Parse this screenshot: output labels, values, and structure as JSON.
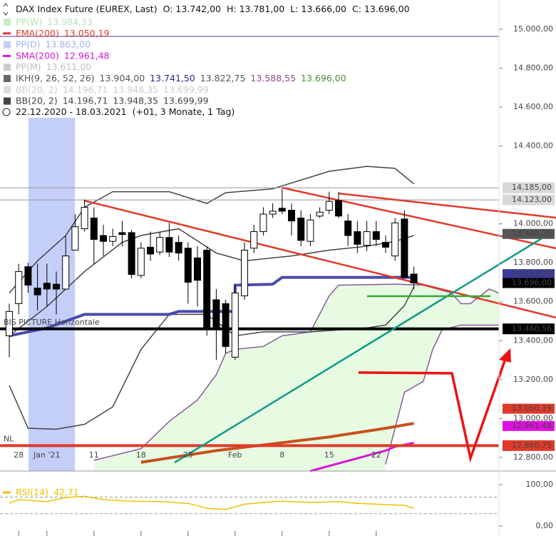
{
  "header": {
    "symbol": "DAX Index Future (EUREX, Last)",
    "ohlc": [
      "O: 13.742,00",
      "H: 13.781,00",
      "L: 13.666,00",
      "C: 13.696,00"
    ],
    "range": "22.12.2020 - 18.03.2021",
    "range_note": "(+01, 3 Monate, 1 Tag)"
  },
  "chart_data": [
    {
      "type": "candlestick",
      "legend": [
        {
          "name": "PP(W)",
          "values": [
            "13.984,33"
          ],
          "colors": [
            "#b5e3b5"
          ],
          "marker": "#c8eec8"
        },
        {
          "name": "EMA(200)",
          "values": [
            "13.050,19"
          ],
          "colors": [
            "#e03a2a"
          ],
          "marker": "#e03a2a"
        },
        {
          "name": "PP(D)",
          "values": [
            "13.863,00"
          ],
          "colors": [
            "#9fb2ee"
          ],
          "marker": "#c4d0f6"
        },
        {
          "name": "SMA(200)",
          "values": [
            "12.961,48"
          ],
          "colors": [
            "#d516d5"
          ],
          "marker": "#d516d5"
        },
        {
          "name": "PP(M)",
          "values": [
            "13.611,00"
          ],
          "colors": [
            "#c0c0c0"
          ],
          "marker": "#cccccc"
        },
        {
          "name": "IKH(9, 26, 52, 26)",
          "values": [
            "13.904,00",
            "13.741,50",
            "13.822,75",
            "13.588,55",
            "13.696,00"
          ],
          "colors": [
            "#555555",
            "#2a2a8a",
            "#555555",
            "#8a4a8a",
            "#4a8a3a"
          ],
          "marker": "#666666"
        },
        {
          "name": "BB(20, 2)",
          "values": [
            "14.196,71",
            "13.948,35",
            "13.699,99"
          ],
          "colors": [
            "#cccccc",
            "#cccccc",
            "#cccccc"
          ],
          "marker": "#dddddd"
        },
        {
          "name": "BB(20, 2)",
          "values": [
            "14.196,71",
            "13.948,35",
            "13.699,99"
          ],
          "colors": [
            "#444444",
            "#444444",
            "#444444"
          ],
          "marker": "#444444"
        }
      ],
      "categories": [
        null,
        "28",
        null,
        null,
        "Jan '21",
        null,
        null,
        null,
        null,
        "11",
        null,
        null,
        null,
        null,
        "18",
        null,
        null,
        null,
        null,
        "25",
        null,
        null,
        null,
        null,
        "Feb",
        null,
        null,
        null,
        null,
        "8",
        null,
        null,
        null,
        null,
        "15",
        null,
        null,
        null,
        null,
        "22",
        null,
        null,
        null,
        null
      ],
      "open": [
        13425,
        13590,
        13780,
        13670,
        13695,
        13690,
        13665,
        13865,
        13975,
        14030,
        13940,
        13910,
        13955,
        13955,
        13735,
        13880,
        13855,
        13930,
        13905,
        13875,
        13825,
        13865,
        13610,
        13590,
        13315,
        13630,
        13875,
        13960,
        14050,
        14080,
        14070,
        14030,
        13910,
        14040,
        14070,
        14120,
        14015,
        13960,
        13890,
        13960,
        13905,
        13835,
        14025,
        13742
      ],
      "high": [
        13590,
        13795,
        13800,
        13795,
        13795,
        13755,
        13940,
        14050,
        14125,
        14085,
        13995,
        13975,
        14015,
        13970,
        13905,
        13960,
        13960,
        14005,
        13940,
        13905,
        13885,
        13885,
        13665,
        13610,
        13685,
        13905,
        13995,
        14085,
        14105,
        14180,
        14105,
        14070,
        14050,
        14085,
        14165,
        14165,
        14050,
        14015,
        14015,
        14015,
        13940,
        14030,
        14070,
        13781
      ],
      "low": [
        13315,
        13535,
        13645,
        13555,
        13575,
        13535,
        13665,
        13865,
        13960,
        13795,
        13835,
        13885,
        13885,
        13720,
        13720,
        13810,
        13840,
        13830,
        13810,
        13590,
        13575,
        13425,
        13300,
        13335,
        13300,
        13610,
        13850,
        13940,
        14030,
        14050,
        13940,
        13885,
        13885,
        14030,
        14050,
        14030,
        13885,
        13850,
        13860,
        13885,
        13850,
        13810,
        13720,
        13666
      ],
      "close": [
        13550,
        13755,
        13685,
        13635,
        13665,
        13665,
        13835,
        13985,
        14085,
        13920,
        13910,
        13935,
        13945,
        13740,
        13875,
        13845,
        13930,
        13855,
        13850,
        13700,
        13710,
        13465,
        13465,
        13370,
        13645,
        13865,
        13960,
        14050,
        14065,
        14065,
        14015,
        13915,
        14020,
        14060,
        14115,
        14040,
        13940,
        13895,
        13960,
        13920,
        13880,
        14005,
        13725,
        13696
      ],
      "up_color": "#ffffff",
      "down_color": "#000000",
      "ylim": [
        12730,
        15150
      ],
      "yticks": [
        {
          "value": 12800,
          "label": "12.800,00"
        },
        {
          "value": 13000,
          "label": "13.000,00"
        },
        {
          "value": 13200,
          "label": "13.200,00"
        },
        {
          "value": 13400,
          "label": "13.400,00"
        },
        {
          "value": 13600,
          "label": "13.600,00"
        },
        {
          "value": 13800,
          "label": "13.800,00"
        },
        {
          "value": 14000,
          "label": "14.000,00"
        },
        {
          "value": 14400,
          "label": "14.400,00"
        },
        {
          "value": 14600,
          "label": "14.600,00"
        },
        {
          "value": 14800,
          "label": "14.800,00"
        },
        {
          "value": 15000,
          "label": "15.000,00"
        }
      ],
      "overlays": [
        {
          "color": "#8a5a9a",
          "width": 1.5,
          "fill": "#e6fbe2",
          "x": [
            9,
            14,
            17,
            20,
            22,
            23,
            24,
            27,
            29,
            32,
            34,
            35,
            41,
            44,
            47,
            48,
            49,
            51,
            52
          ],
          "values": [
            12785,
            12845,
            12985,
            13095,
            13225,
            13335,
            13355,
            13370,
            13425,
            13445,
            13630,
            13685,
            13690,
            13685,
            13645,
            13590,
            13590,
            13665,
            13645
          ]
        },
        {
          "color": "#8a5a9a",
          "width": 1.5,
          "x": [
            40,
            41,
            42,
            44,
            45,
            46,
            48,
            52
          ],
          "values": [
            12765,
            12950,
            13135,
            13190,
            13355,
            13455,
            13480,
            13480
          ]
        },
        {
          "color": "#444444",
          "width": 1.5,
          "x": [
            0,
            3,
            6,
            8,
            11,
            17,
            21,
            23,
            28,
            34,
            38,
            41,
            43
          ],
          "values": [
            13645,
            13810,
            13940,
            14085,
            14165,
            14165,
            14105,
            14160,
            14180,
            14270,
            14295,
            14285,
            14205
          ]
        },
        {
          "color": "#444444",
          "width": 1.5,
          "x": [
            0,
            4,
            8,
            12,
            14,
            18,
            22,
            25,
            30,
            34,
            38,
            41,
            43
          ],
          "values": [
            13425,
            13575,
            13755,
            13905,
            13940,
            13975,
            13850,
            13810,
            13835,
            13865,
            13885,
            13910,
            13940
          ]
        },
        {
          "color": "#444444",
          "width": 1.5,
          "x": [
            0,
            2,
            5,
            8,
            11,
            14,
            17,
            21,
            24,
            27,
            32,
            38,
            40,
            42,
            43
          ],
          "values": [
            13170,
            12950,
            12945,
            12970,
            13060,
            13355,
            13535,
            13535,
            13425,
            13445,
            13445,
            13465,
            13480,
            13580,
            13675
          ]
        },
        {
          "color": "#4b4baa",
          "width": 4,
          "x": [
            0,
            4,
            8,
            17,
            18,
            24,
            24,
            28,
            29,
            43
          ],
          "values": [
            13425,
            13465,
            13535,
            13535,
            13550,
            13550,
            13685,
            13690,
            13725,
            13725
          ]
        },
        {
          "color": "#c8501e",
          "width": 4,
          "x": [
            14,
            22,
            28,
            34,
            40,
            43
          ],
          "values": [
            12775,
            12835,
            12870,
            12905,
            12950,
            12975
          ]
        },
        {
          "color": "#d516d5",
          "width": 3,
          "x": [
            32,
            40,
            41,
            43
          ],
          "values": [
            12730,
            12835,
            12855,
            12875
          ]
        }
      ],
      "levels": [
        {
          "value": 14963,
          "color": "#5a3a9a",
          "width": 1
        },
        {
          "value": 14185,
          "label": "14.185,00",
          "color": "#999999",
          "width": 1,
          "tag_color": "#d8d8d8",
          "text_color": "#333333"
        },
        {
          "value": 14123,
          "label": "14.123,00",
          "color": "#999999",
          "width": 1,
          "tag_color": "#d8d8d8",
          "text_color": "#333333"
        },
        {
          "value": 13460.56,
          "label": "13.460,56",
          "note": "BIS PICTURE Horizontale",
          "color": "#000000",
          "width": 4,
          "tag_color": "#000000",
          "text_color": "#ffffff"
        },
        {
          "value": 12860.75,
          "label": "12.860,75",
          "note": "NL",
          "color": "#e03a2a",
          "width": 4,
          "tag_color": "#e03a2a",
          "text_color": "#000000"
        }
      ],
      "price_tags": [
        {
          "value": 13948.35,
          "label": "13.948,35",
          "color": "#555555",
          "text_color": "#ffffff"
        },
        {
          "value": 13741.5,
          "label": "13.741,50",
          "color": "#3a3a9a",
          "text_color": "#ffffff"
        },
        {
          "value": 13696,
          "label": "13.696,00",
          "color": "#000000",
          "text_color": "#ffffff"
        },
        {
          "value": 13050.19,
          "label": "13.050,19",
          "color": "#e03a2a",
          "text_color": "#000000"
        },
        {
          "value": 12961.48,
          "label": "12.961,48",
          "color": "#e010e0",
          "text_color": "#000000"
        }
      ]
    },
    {
      "type": "line",
      "title": "RSI(14)",
      "last_label": "42,71",
      "color": "#f0c000",
      "x": [
        0,
        1,
        4,
        6,
        8,
        10,
        13,
        16,
        19,
        21,
        23,
        25,
        28,
        29,
        32,
        35,
        37,
        39,
        42,
        43
      ],
      "values": [
        55,
        64,
        59,
        69,
        72,
        64,
        60,
        59,
        55,
        43,
        40,
        53,
        59,
        60,
        57,
        59,
        55,
        53,
        50,
        42.71
      ],
      "ylim": [
        -24,
        133
      ],
      "yticks": [
        {
          "value": 100,
          "label": "100,00"
        },
        {
          "value": 0,
          "label": "0,00"
        }
      ],
      "levels": [
        70,
        30
      ]
    }
  ]
}
